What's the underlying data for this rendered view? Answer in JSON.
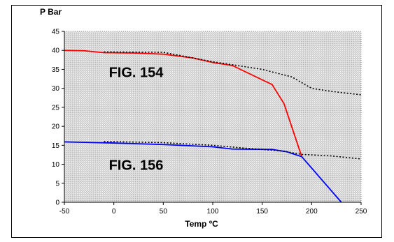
{
  "chart_data": {
    "type": "line",
    "ylabel": "P Bar",
    "xlabel": "Temp ºC",
    "xlim": [
      -50,
      250
    ],
    "ylim": [
      0,
      45
    ],
    "x_ticks": [
      -50,
      0,
      50,
      100,
      150,
      200,
      250
    ],
    "y_ticks": [
      0,
      5,
      10,
      15,
      20,
      25,
      30,
      35,
      40,
      45
    ],
    "grid": false,
    "background": "hatched-gray",
    "annotations": [
      {
        "text": "FIG. 154",
        "x": -5,
        "y": 33
      },
      {
        "text": "FIG. 156",
        "x": -5,
        "y": 8.5
      }
    ],
    "series": [
      {
        "color": "#ff0000",
        "style": "solid",
        "points": [
          [
            -50,
            40
          ],
          [
            -30,
            39.9
          ],
          [
            -10,
            39.4
          ],
          [
            20,
            39.3
          ],
          [
            50,
            39
          ],
          [
            80,
            38
          ],
          [
            100,
            36.8
          ],
          [
            120,
            36
          ],
          [
            160,
            31
          ],
          [
            172,
            26
          ],
          [
            190,
            12
          ]
        ]
      },
      {
        "color": "#000000",
        "style": "dotted",
        "points": [
          [
            -10,
            39.6
          ],
          [
            50,
            39.5
          ],
          [
            100,
            37
          ],
          [
            150,
            35
          ],
          [
            180,
            33
          ],
          [
            200,
            30
          ],
          [
            220,
            29.2
          ],
          [
            250,
            28.3
          ]
        ]
      },
      {
        "color": "#0000ff",
        "style": "solid",
        "points": [
          [
            -50,
            15.9
          ],
          [
            0,
            15.6
          ],
          [
            50,
            15.2
          ],
          [
            100,
            14.6
          ],
          [
            120,
            14
          ],
          [
            160,
            13.9
          ],
          [
            175,
            13.3
          ],
          [
            190,
            12
          ],
          [
            210,
            6
          ],
          [
            230,
            0
          ]
        ]
      },
      {
        "color": "#000000",
        "style": "dotted",
        "points": [
          [
            -10,
            16
          ],
          [
            50,
            15.7
          ],
          [
            100,
            15
          ],
          [
            130,
            14.3
          ],
          [
            170,
            13.5
          ],
          [
            190,
            12.6
          ],
          [
            220,
            12.2
          ],
          [
            250,
            11.4
          ]
        ]
      }
    ]
  }
}
